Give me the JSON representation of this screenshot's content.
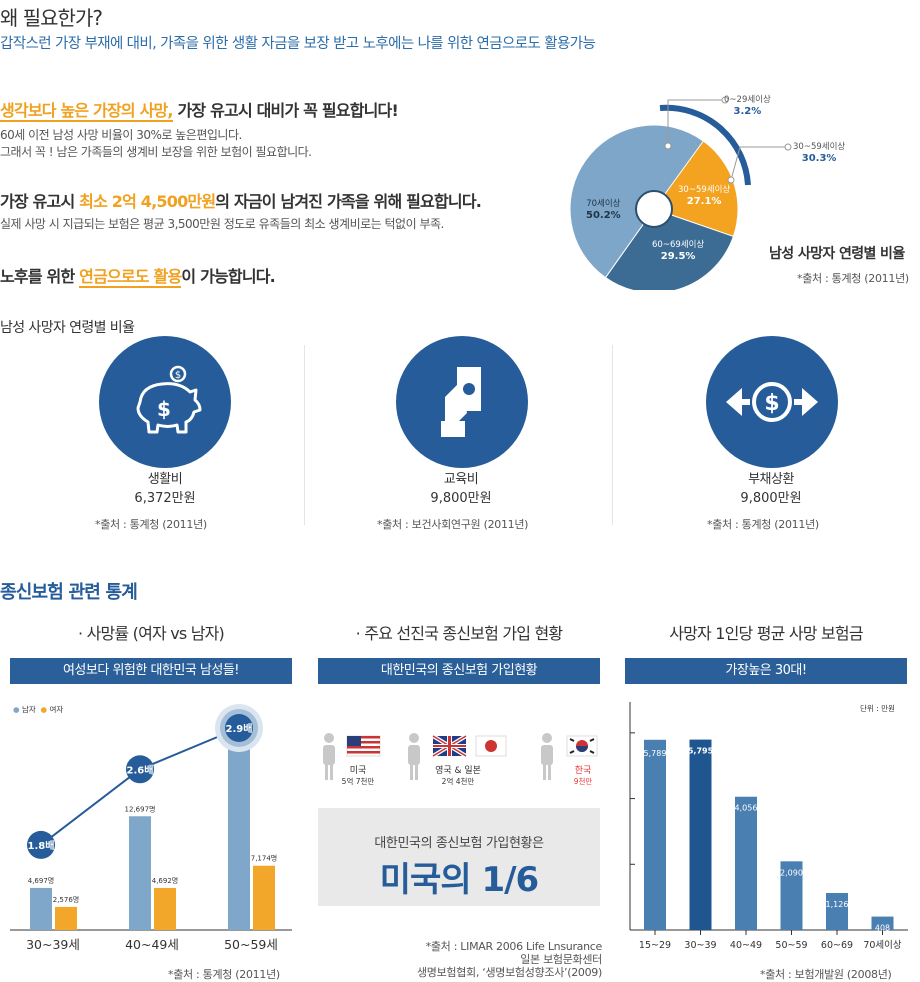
{
  "header": {
    "title": "왜 필요한가?",
    "subtitle": "갑작스런 가장 부재에 대비, 가족을 위한 생활 자금을 보장 받고 노후에는 나를 위한 연금으로도 활용가능"
  },
  "points": [
    {
      "highlight": "생각보다 높은 가장의 사망,",
      "rest": " 가장 유고시 대비가 꼭 필요합니다!",
      "lines": [
        "60세 이전 남성 사망 비율이 30%로 높은편입니다.",
        "그래서 꼭 ! 남은 가족들의 생계비 보장을 위한 보험이 필요합니다."
      ]
    },
    {
      "pre": "가장 유고시 ",
      "highlight": "최소 2억 4,500만원",
      "rest": "의 자금이 남겨진 가족을 위해 필요합니다.",
      "lines": [
        "실제 사망 시 지급되는 보험은 평균 3,500만원 정도로 유족들의 최소 생계비로는 턱없이 부족."
      ]
    },
    {
      "pre": "노후를 위한 ",
      "highlight": "연금으로도 활용",
      "rest": "이 가능합니다.",
      "lines": []
    }
  ],
  "pie": {
    "title": "남성 사망자 연령별 비율",
    "source": "*출처 : 통계청 (2011년)",
    "slices": [
      {
        "label": "0~29세이상",
        "value": "3.2%",
        "pct": 3.2,
        "color": "#ef4b4b"
      },
      {
        "label": "30~59세이상",
        "value": "27.1%",
        "pct": 27.1,
        "color": "#f3a31f"
      },
      {
        "label": "60~69세이상",
        "value": "29.5%",
        "pct": 29.5,
        "color": "#3c6c94"
      },
      {
        "label": "70세이상",
        "value": "50.2%",
        "pct": 50.2,
        "color": "#7ea6c8"
      }
    ],
    "callout": {
      "label": "30~59세이상",
      "value": "30.3%"
    }
  },
  "costs": {
    "heading": "남성 사망자 연령별 비율",
    "items": [
      {
        "icon": "piggy-bank-icon",
        "name": "생활비",
        "value": "6,372만원",
        "source": "*출처 : 통계청 (2011년)"
      },
      {
        "icon": "cash-hand-icon",
        "name": "교육비",
        "value": "9,800만원",
        "source": "*출처 : 보건사회연구원 (2011년)"
      },
      {
        "icon": "debt-exchange-icon",
        "name": "부채상환",
        "value": "9,800만원",
        "source": "*출처 : 통계청 (2011년)"
      }
    ]
  },
  "stats": {
    "heading": "종신보험 관련 통계",
    "mortality": {
      "title": "· 사망률 (여자 vs 남자)",
      "band": "여성보다 위험한 대한민국 남성들!",
      "legend": [
        "남자",
        "여자"
      ],
      "source": "*출처 : 통계청 (2011년)"
    },
    "subscription": {
      "title": "· 주요 선진국 종신보험 가입 현황",
      "band": "대한민국의 종신보험 가입현황",
      "countries": [
        {
          "name": "미국",
          "amount": "5억 7천만"
        },
        {
          "name": "영국 & 일본",
          "amount": "2억 4천만"
        },
        {
          "name": "한국",
          "amount": "9천만"
        }
      ],
      "summary_label": "대한민국의 종신보험 가입현황은",
      "summary_value": "미국의 1/6",
      "source_lines": [
        "*출처 : LIMAR 2006 Life Lnsurance",
        "일본 보험문화센터",
        "생명보험협회, ‘생명보험성향조사’(2009)"
      ]
    },
    "payout": {
      "title": "사망자 1인당 평균 사망 보험금",
      "band": "가장높은 30대!",
      "unit": "단위 : 만원",
      "source": "*출처 : 보험개발원 (2008년)"
    }
  },
  "chart_data": [
    {
      "type": "bar",
      "title": "사망률 (여자 vs 남자)",
      "categories": [
        "30~39세",
        "40~49세",
        "50~59세"
      ],
      "series": [
        {
          "name": "남자",
          "values": [
            4697,
            12697,
            21190
          ],
          "labels": [
            "4,697명",
            "12,697명",
            "21,190명"
          ],
          "color": "#7fa7c9"
        },
        {
          "name": "여자",
          "values": [
            2576,
            4692,
            7174
          ],
          "labels": [
            "2,576명",
            "4,692명",
            "7,174명"
          ],
          "color": "#f3a72a"
        }
      ],
      "ratios": [
        "1.8배",
        "2.6배",
        "2.9배"
      ],
      "legend": "top-left",
      "grid": false
    },
    {
      "type": "bar",
      "title": "사망자 1인당 평균 사망 보험금",
      "categories": [
        "15~29",
        "30~39",
        "40~49",
        "50~59",
        "60~69",
        "70세이상"
      ],
      "values": [
        5789,
        5795,
        4056,
        2090,
        1126,
        408
      ],
      "labels": [
        "5,789",
        "5,795",
        "4,056",
        "2,090",
        "1,126",
        "408"
      ],
      "ylim": [
        0,
        7000
      ],
      "color": "#4a7fb2",
      "highlight_color": "#20568f",
      "grid": false
    }
  ]
}
